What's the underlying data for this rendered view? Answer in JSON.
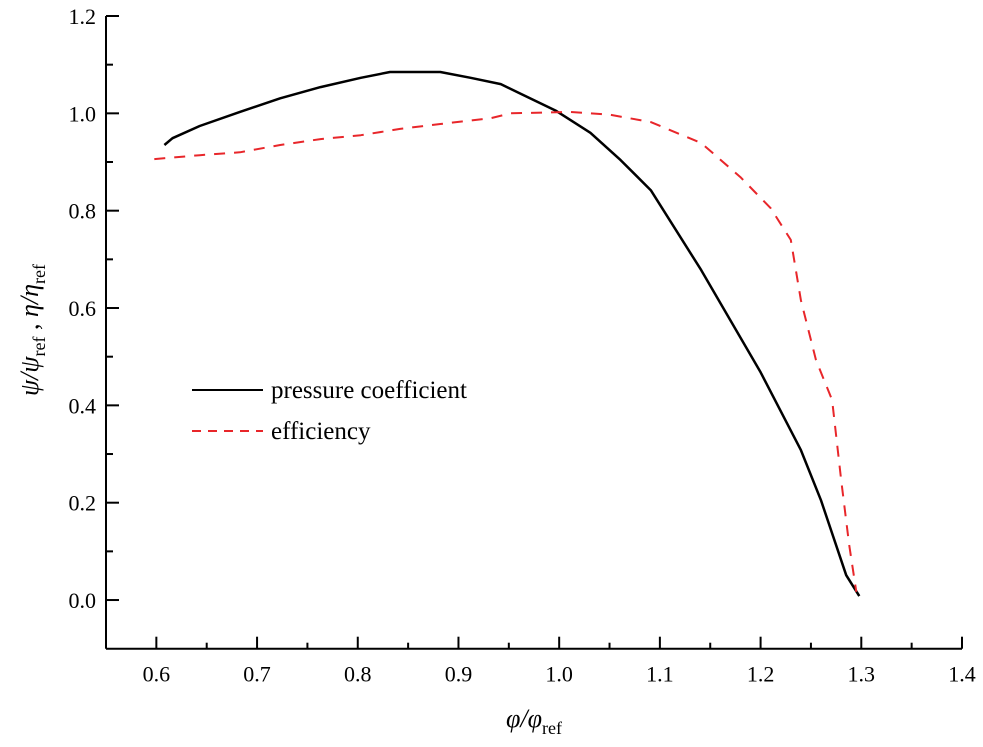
{
  "chart_data": {
    "type": "line",
    "title": "",
    "xlabel": {
      "symbol": "φ/φ",
      "subscript": "ref"
    },
    "ylabel": {
      "part1": "ψ/ψ",
      "sub1": "ref",
      "sep": " , ",
      "part2": "η/η",
      "sub2": "ref"
    },
    "xlim": [
      0.55,
      1.4
    ],
    "ylim": [
      -0.1,
      1.2
    ],
    "x_ticks": [
      "0.6",
      "0.7",
      "0.8",
      "0.9",
      "1.0",
      "1.1",
      "1.2",
      "1.3",
      "1.4"
    ],
    "x_tick_values": [
      0.6,
      0.7,
      0.8,
      0.9,
      1.0,
      1.1,
      1.2,
      1.3,
      1.4
    ],
    "x_minor_ticks": [
      0.65,
      0.75,
      0.85,
      0.95,
      1.05,
      1.15,
      1.25,
      1.35
    ],
    "y_ticks": [
      "0.0",
      "0.2",
      "0.4",
      "0.6",
      "0.8",
      "1.0",
      "1.2"
    ],
    "y_tick_values": [
      0.0,
      0.2,
      0.4,
      0.6,
      0.8,
      1.0,
      1.2
    ],
    "y_minor_ticks": [
      0.1,
      0.3,
      0.5,
      0.7,
      0.9,
      1.1
    ],
    "grid": false,
    "legend_position": "center-left",
    "series": [
      {
        "name": "pressure coefficient",
        "color": "#000000",
        "style": "solid",
        "x": [
          0.608,
          0.616,
          0.643,
          0.683,
          0.723,
          0.763,
          0.803,
          0.832,
          0.882,
          0.912,
          0.942,
          0.962,
          0.997,
          1.031,
          1.061,
          1.091,
          1.141,
          1.2,
          1.24,
          1.26,
          1.285,
          1.298
        ],
        "y": [
          0.935,
          0.949,
          0.974,
          1.003,
          1.031,
          1.054,
          1.073,
          1.085,
          1.085,
          1.073,
          1.06,
          1.04,
          1.005,
          0.96,
          0.904,
          0.842,
          0.678,
          0.468,
          0.308,
          0.205,
          0.051,
          0.008
        ]
      },
      {
        "name": "efficiency",
        "color": "#e8262a",
        "style": "dashed",
        "x": [
          0.598,
          0.643,
          0.683,
          0.723,
          0.763,
          0.803,
          0.842,
          0.882,
          0.932,
          0.952,
          1.011,
          1.051,
          1.091,
          1.141,
          1.18,
          1.21,
          1.23,
          1.24,
          1.255,
          1.271,
          1.28,
          1.288,
          1.295
        ],
        "y": [
          0.906,
          0.914,
          0.92,
          0.935,
          0.947,
          0.955,
          0.968,
          0.978,
          0.99,
          1.0,
          1.003,
          0.997,
          0.982,
          0.939,
          0.869,
          0.805,
          0.74,
          0.616,
          0.493,
          0.411,
          0.246,
          0.113,
          0.017
        ]
      }
    ]
  }
}
